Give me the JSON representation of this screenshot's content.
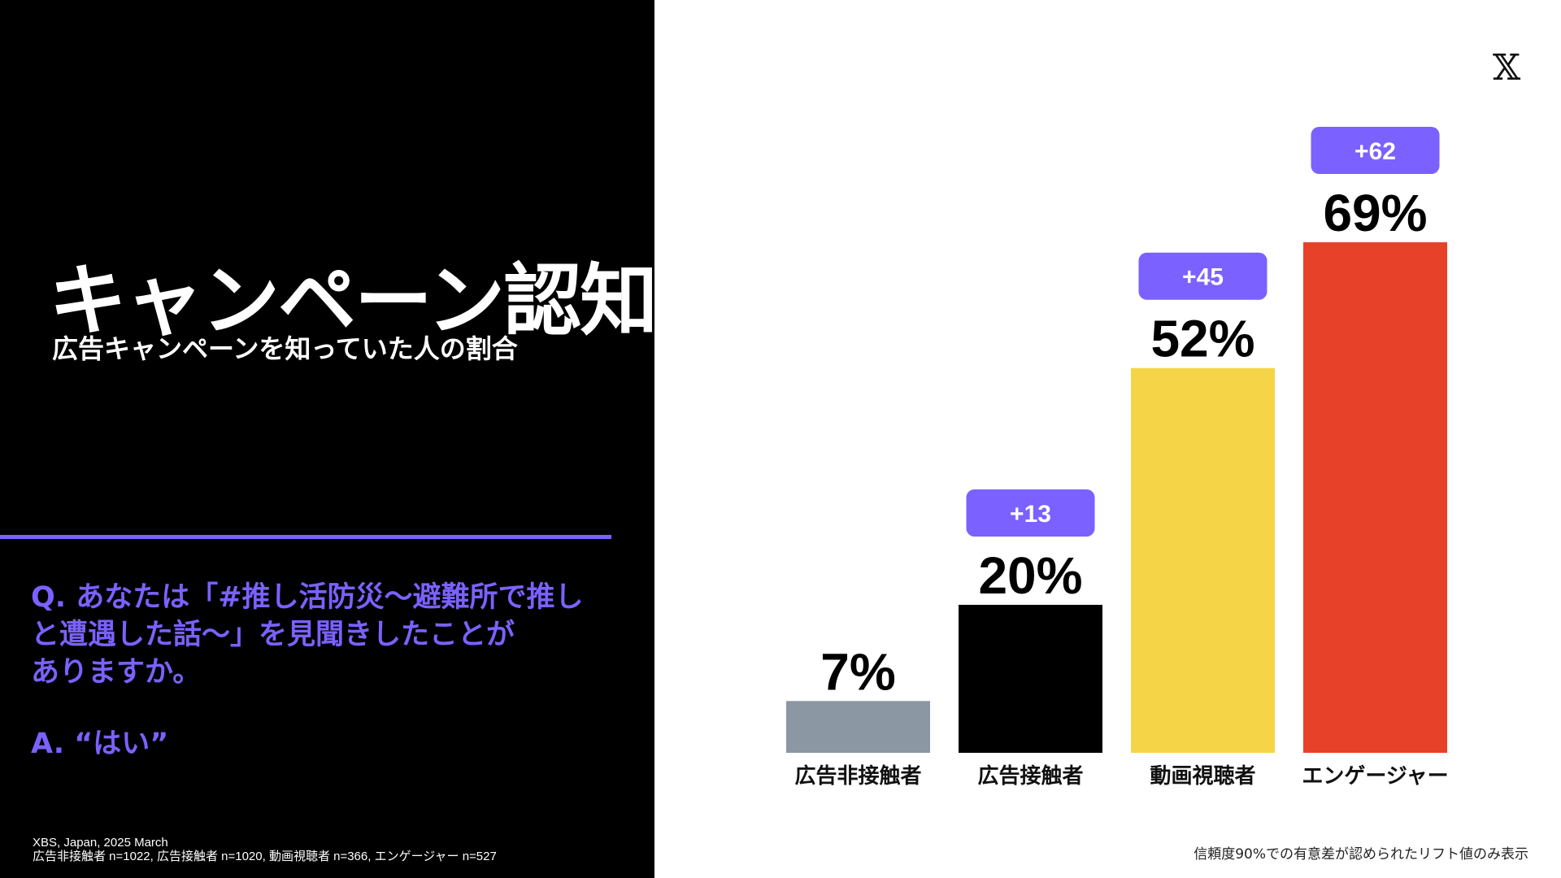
{
  "header": {
    "title": "キャンペーン認知",
    "subtitle": "広告キャンペーンを知っていた人の割合"
  },
  "survey": {
    "question_lines": [
      "Q. あなたは「#推し活防災〜避難所で推し",
      "と遭遇した話〜」を見聞きしたことが",
      "ありますか。"
    ],
    "answer": "A. “はい”"
  },
  "source": {
    "line1": "XBS, Japan, 2025 March",
    "line2": "広告非接触者 n=1022, 広告接触者 n=1020, 動画視聴者 n=366, エンゲージャー n=527"
  },
  "footnote": "信頼度90%での有意差が認められたリフト値のみ表示",
  "logo": {
    "icon": "x-logo-icon",
    "glyph": "𝕏"
  },
  "colors": {
    "background_left": "#000000",
    "accent_purple": "#7B61FF",
    "bar_gray": "#8B97A3",
    "bar_black": "#000000",
    "bar_yellow": "#F5D547",
    "bar_red": "#E8412A"
  },
  "chart_data": {
    "type": "bar",
    "categories": [
      "広告非接触者",
      "広告接触者",
      "動画視聴者",
      "エンゲージャー"
    ],
    "values": [
      7,
      20,
      52,
      69
    ],
    "value_labels": [
      "7%",
      "20%",
      "52%",
      "69%"
    ],
    "lifts": [
      null,
      "+13",
      "+45",
      "+62"
    ],
    "bar_colors": [
      "#8B97A3",
      "#000000",
      "#F5D547",
      "#E8412A"
    ],
    "ylim": [
      0,
      69
    ],
    "grid": false
  }
}
